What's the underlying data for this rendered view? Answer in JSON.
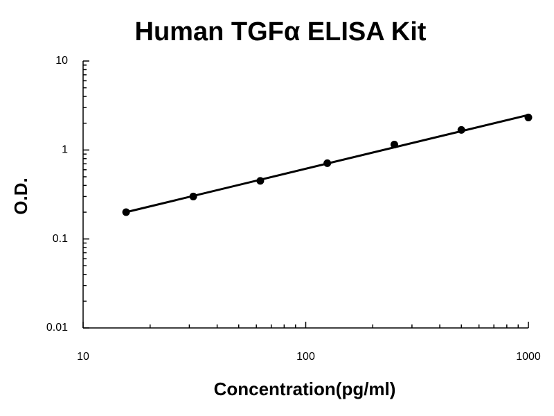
{
  "chart_data": {
    "type": "scatter",
    "title": "Human TGFα ELISA Kit",
    "x_label": "Concentration(pg/ml)",
    "y_label": "O.D.",
    "x": [
      15.6,
      31.25,
      62.5,
      125,
      250,
      500,
      1000
    ],
    "values": [
      0.2,
      0.3,
      0.45,
      0.71,
      1.15,
      1.68,
      2.32
    ],
    "color": "#000000",
    "x_log": true,
    "y_log": true,
    "xlim": [
      10,
      1000
    ],
    "ylim": [
      0.01,
      10
    ],
    "xticks": [
      10,
      100,
      1000
    ],
    "yticks": [
      0.01,
      0.1,
      1,
      10
    ],
    "fit_line": true
  }
}
